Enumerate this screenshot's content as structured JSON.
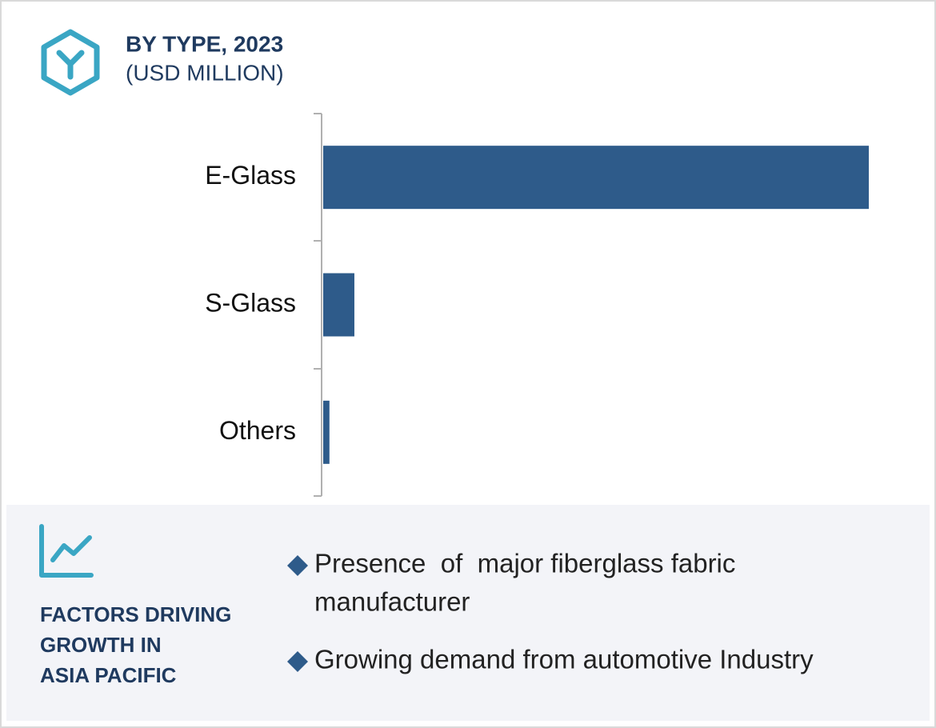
{
  "chart_data": {
    "type": "bar",
    "title": "BY TYPE, 2023",
    "subtitle": "(USD MILLION)",
    "categories": [
      "E-Glass",
      "S-Glass",
      "Others"
    ],
    "values": [
      1750,
      100,
      20
    ],
    "color": "#2e5b8a",
    "orientation": "horizontal"
  },
  "factors": {
    "title_lines": [
      "FACTORS DRIVING",
      "GROWTH IN",
      "ASIA PACIFIC"
    ],
    "items": [
      [
        "Presence  of  major fiberglass fabric",
        "manufacturer"
      ],
      [
        "Growing demand from automotive Industry"
      ]
    ]
  }
}
